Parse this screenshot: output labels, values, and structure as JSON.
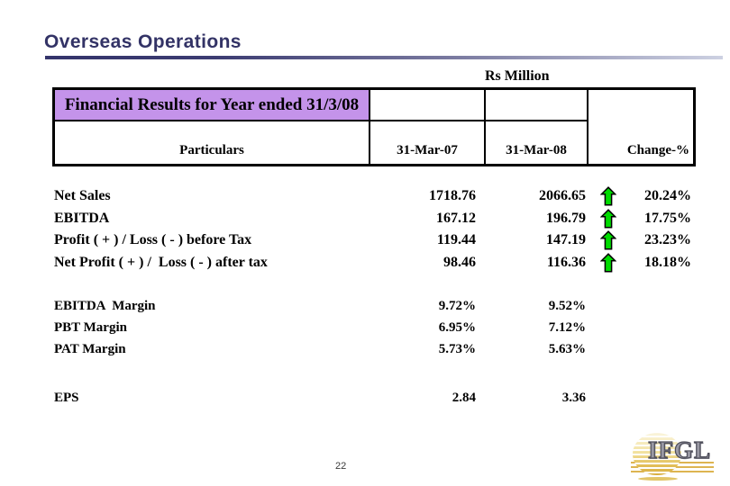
{
  "slide": {
    "title": "Overseas Operations",
    "unit_label": "Rs Million",
    "page_number": "22"
  },
  "table": {
    "header_title": "Financial Results for Year ended 31/3/08",
    "columns": [
      "Particulars",
      "31-Mar-07",
      "31-Mar-08",
      "Change-%"
    ],
    "main_rows": [
      {
        "label": "Net Sales",
        "mar07": "1718.76",
        "mar08": "2066.65",
        "trend": "up",
        "change": "20.24%"
      },
      {
        "label": "EBITDA",
        "mar07": "167.12",
        "mar08": "196.79",
        "trend": "up",
        "change": "17.75%"
      },
      {
        "label": "Profit ( + ) / Loss ( - ) before Tax",
        "mar07": "119.44",
        "mar08": "147.19",
        "trend": "up",
        "change": "23.23%"
      },
      {
        "label": "Net Profit ( + ) /  Loss ( - ) after tax",
        "mar07": "98.46",
        "mar08": "116.36",
        "trend": "up",
        "change": "18.18%"
      }
    ],
    "margin_rows": [
      {
        "label": "EBITDA  Margin",
        "mar07": "9.72%",
        "mar08": "9.52%"
      },
      {
        "label": "PBT Margin",
        "mar07": "6.95%",
        "mar08": "7.12%"
      },
      {
        "label": "PAT Margin",
        "mar07": "5.73%",
        "mar08": "5.63%"
      }
    ],
    "eps_rows": [
      {
        "label": "EPS",
        "mar07": "2.84",
        "mar08": "3.36"
      }
    ]
  },
  "logo": {
    "text": "IFGL"
  },
  "icons": {
    "trend_up": "up-arrow-icon"
  },
  "colors": {
    "title_text": "#333366",
    "underline_start": "#34346B",
    "underline_end": "#CDD1E2",
    "header_fill": "#C493EA",
    "table_border": "#000000",
    "arrow_fill": "#00DC00",
    "arrow_outline": "#000000",
    "logo_gold": "#DDB451",
    "logo_text_fill": "#9A99A4",
    "logo_text_outline": "#4E4E5A",
    "page_number_color": "#3A3A3A"
  }
}
